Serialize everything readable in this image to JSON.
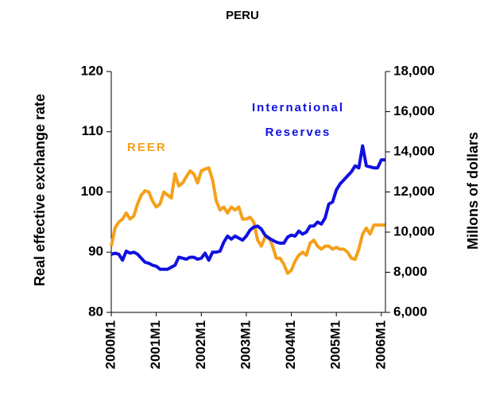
{
  "chart_data": {
    "type": "line",
    "title": "PERU",
    "ylabel": "Real effective exchange rate",
    "y2label": "Millons of dollars",
    "categories": [
      "2000M1",
      null,
      null,
      null,
      null,
      null,
      null,
      null,
      null,
      null,
      null,
      null,
      "2001M1",
      null,
      null,
      null,
      null,
      null,
      null,
      null,
      null,
      null,
      null,
      null,
      "2002M1",
      null,
      null,
      null,
      null,
      null,
      null,
      null,
      null,
      null,
      null,
      null,
      "2003M1",
      null,
      null,
      null,
      null,
      null,
      null,
      null,
      null,
      null,
      null,
      null,
      "2004M1",
      null,
      null,
      null,
      null,
      null,
      null,
      null,
      null,
      null,
      null,
      null,
      "2005M1",
      null,
      null,
      null,
      null,
      null,
      null,
      null,
      null,
      null,
      null,
      null,
      "2006M1",
      null
    ],
    "series": [
      {
        "name": "REER",
        "color": "#f5a01a",
        "axis": "y",
        "values": [
          91,
          94,
          95,
          95.5,
          96.5,
          95.5,
          96,
          98,
          99.5,
          100.2,
          100,
          98.5,
          97.5,
          98,
          100,
          99.5,
          99,
          103,
          101,
          101.5,
          102.5,
          103.5,
          103,
          101.5,
          103.5,
          103.8,
          104,
          102,
          98.5,
          97,
          97.5,
          96.5,
          97.5,
          97,
          97.5,
          95.5,
          95.5,
          95.8,
          95,
          92,
          91,
          92.5,
          92.5,
          91,
          89,
          89,
          88,
          86.5,
          87,
          88.5,
          89.5,
          90,
          89.5,
          91.5,
          92,
          91,
          90.5,
          91,
          91,
          90.5,
          90.8,
          90.5,
          90.5,
          90,
          89,
          88.8,
          90.5,
          93,
          94,
          93,
          94.5,
          94.5,
          94.5,
          94.5
        ]
      },
      {
        "name": "International Reserves",
        "color": "#1010e0",
        "axis": "y2",
        "values": [
          8900,
          8950,
          8900,
          8600,
          9050,
          8950,
          9000,
          8900,
          8700,
          8500,
          8450,
          8350,
          8300,
          8150,
          8150,
          8150,
          8250,
          8350,
          8750,
          8700,
          8650,
          8750,
          8750,
          8650,
          8700,
          8950,
          8600,
          9000,
          9000,
          9050,
          9500,
          9800,
          9650,
          9800,
          9700,
          9600,
          9800,
          10100,
          10250,
          10300,
          10150,
          9850,
          9700,
          9600,
          9500,
          9450,
          9450,
          9750,
          9850,
          9800,
          10050,
          9900,
          10000,
          10300,
          10300,
          10500,
          10400,
          10700,
          11400,
          11500,
          12100,
          12400,
          12600,
          12800,
          13000,
          13300,
          13200,
          14300,
          13300,
          13250,
          13200,
          13200,
          13600,
          13600
        ]
      }
    ],
    "ylim": [
      80,
      120
    ],
    "yticks": [
      80,
      90,
      100,
      110,
      120
    ],
    "y2lim": [
      6000,
      18000
    ],
    "y2ticks": [
      {
        "value": 6000,
        "label": "6,000"
      },
      {
        "value": 8000,
        "label": "8,000"
      },
      {
        "value": 10000,
        "label": "10,000"
      },
      {
        "value": 12000,
        "label": "12,000"
      },
      {
        "value": 14000,
        "label": "14,000"
      },
      {
        "value": 16000,
        "label": "16,000"
      },
      {
        "value": 18000,
        "label": "18,000"
      }
    ]
  }
}
